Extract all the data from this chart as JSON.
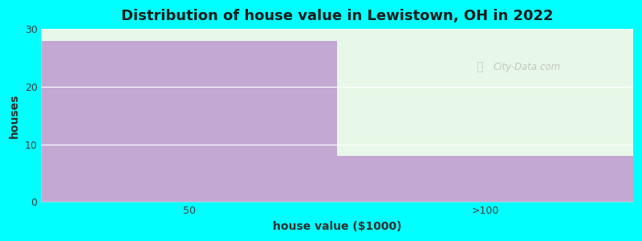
{
  "categories": [
    "50",
    ">100"
  ],
  "values": [
    28,
    8
  ],
  "bar_color": "#C4A8D4",
  "background_color": "#00FFFF",
  "plot_bg_color": "#FFFFFF",
  "right_top_color": "#F0F8F0",
  "left_top_color": "#F0FFF0",
  "title": "Distribution of house value in Lewistown, OH in 2022",
  "xlabel": "house value ($1000)",
  "ylabel": "houses",
  "ylim": [
    0,
    30
  ],
  "yticks": [
    0,
    10,
    20,
    30
  ],
  "title_fontsize": 13,
  "label_fontsize": 10,
  "tick_fontsize": 9,
  "watermark": "City-Data.com",
  "grid_color": "#FFFFFF",
  "spine_color": "#CCCCCC"
}
